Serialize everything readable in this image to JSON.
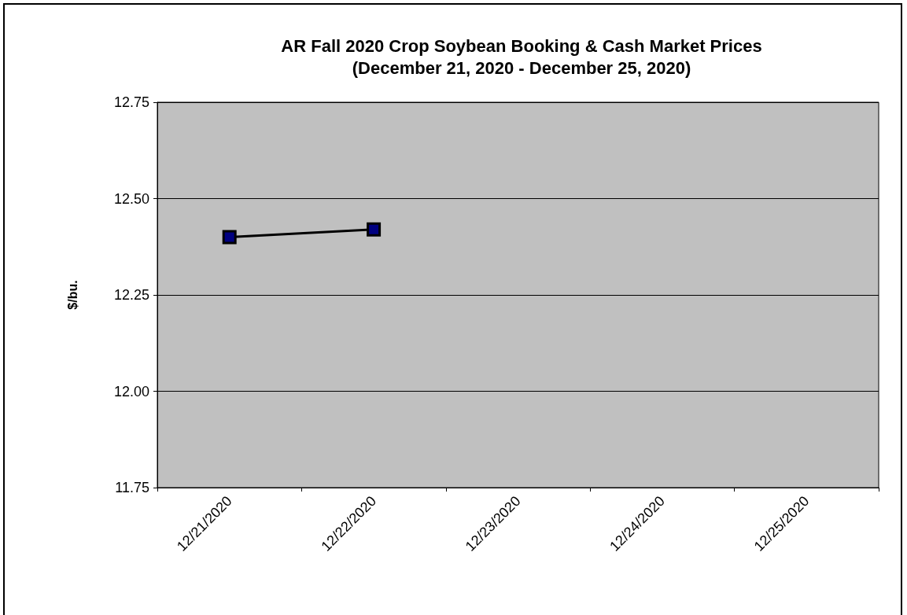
{
  "chart_data": {
    "type": "line",
    "title": "AR Fall 2020 Crop Soybean Booking & Cash Market Prices",
    "subtitle": "(December 21, 2020 - December 25, 2020)",
    "ylabel": "$/bu.",
    "categories": [
      "12/21/2020",
      "12/22/2020",
      "12/23/2020",
      "12/24/2020",
      "12/25/2020"
    ],
    "series": [
      {
        "color": "#000000",
        "values": [
          12.4,
          12.42,
          null,
          null,
          null
        ]
      }
    ],
    "ylim": [
      11.75,
      12.75
    ],
    "yticks": [
      11.75,
      {
        "value": 12.0,
        "label": "12.00"
      },
      12.25,
      {
        "value": 12.5,
        "label": "12.50"
      },
      12.75
    ],
    "grid": "y",
    "marker": "square",
    "line_style": "solid"
  }
}
